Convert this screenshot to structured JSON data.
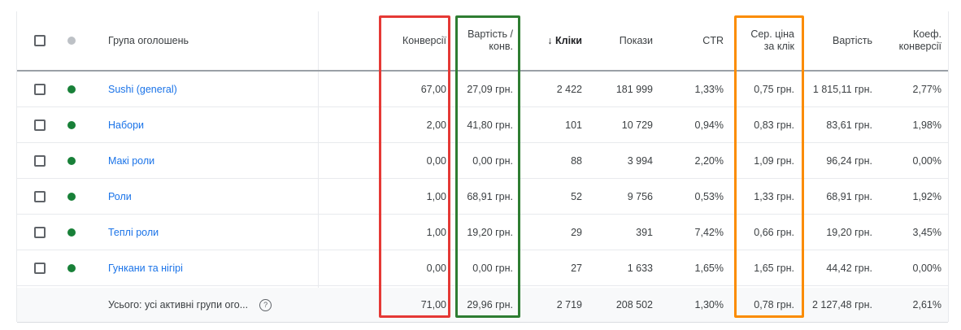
{
  "header": {
    "ad_group": "Група оголошень",
    "conversions": "Конверсії",
    "cost_per_conv_line1": "Вартість /",
    "cost_per_conv_line2": "конв.",
    "clicks": "↓ Кліки",
    "impressions": "Покази",
    "ctr": "CTR",
    "avg_cpc_line1": "Сер. ціна",
    "avg_cpc_line2": "за клік",
    "cost": "Вартість",
    "conv_rate_line1": "Коеф.",
    "conv_rate_line2": "конверсії"
  },
  "rows": [
    {
      "name": "Sushi (general)",
      "conversions": "67,00",
      "cost_per_conv": "27,09 грн.",
      "clicks": "2 422",
      "impressions": "181 999",
      "ctr": "1,33%",
      "avg_cpc": "0,75 грн.",
      "cost": "1 815,11 грн.",
      "conv_rate": "2,77%"
    },
    {
      "name": "Набори",
      "conversions": "2,00",
      "cost_per_conv": "41,80 грн.",
      "clicks": "101",
      "impressions": "10 729",
      "ctr": "0,94%",
      "avg_cpc": "0,83 грн.",
      "cost": "83,61 грн.",
      "conv_rate": "1,98%"
    },
    {
      "name": "Макі роли",
      "conversions": "0,00",
      "cost_per_conv": "0,00 грн.",
      "clicks": "88",
      "impressions": "3 994",
      "ctr": "2,20%",
      "avg_cpc": "1,09 грн.",
      "cost": "96,24 грн.",
      "conv_rate": "0,00%"
    },
    {
      "name": "Роли",
      "conversions": "1,00",
      "cost_per_conv": "68,91 грн.",
      "clicks": "52",
      "impressions": "9 756",
      "ctr": "0,53%",
      "avg_cpc": "1,33 грн.",
      "cost": "68,91 грн.",
      "conv_rate": "1,92%"
    },
    {
      "name": "Теплі роли",
      "conversions": "1,00",
      "cost_per_conv": "19,20 грн.",
      "clicks": "29",
      "impressions": "391",
      "ctr": "7,42%",
      "avg_cpc": "0,66 грн.",
      "cost": "19,20 грн.",
      "conv_rate": "3,45%"
    },
    {
      "name": "Гункани та нігірі",
      "conversions": "0,00",
      "cost_per_conv": "0,00 грн.",
      "clicks": "27",
      "impressions": "1 633",
      "ctr": "1,65%",
      "avg_cpc": "1,65 грн.",
      "cost": "44,42 грн.",
      "conv_rate": "0,00%"
    }
  ],
  "total": {
    "label": "Усього: усі активні групи ого...",
    "help_icon_glyph": "?",
    "conversions": "71,00",
    "cost_per_conv": "29,96 грн.",
    "clicks": "2 719",
    "impressions": "208 502",
    "ctr": "1,30%",
    "avg_cpc": "0,78 грн.",
    "cost": "2 127,48 грн.",
    "conv_rate": "2,61%"
  },
  "colors": {
    "highlight_conversions": "#e53935",
    "highlight_cost_per_conv": "#2e7d32",
    "highlight_avg_cpc": "#fb8c00",
    "status_enabled": "#188038",
    "link": "#1a73e8"
  }
}
